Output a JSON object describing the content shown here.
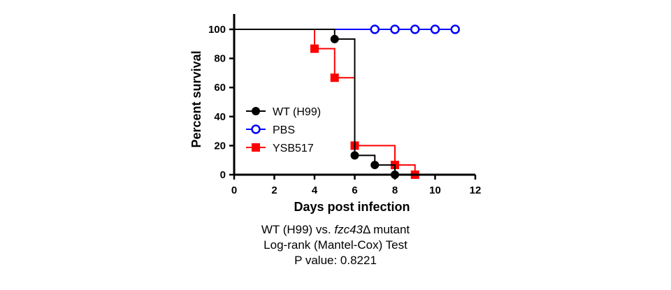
{
  "chart_data": {
    "type": "line",
    "step": true,
    "xlabel": "Days post infection",
    "ylabel": "Percent survival",
    "xlim": [
      0,
      12
    ],
    "ylim": [
      0,
      100
    ],
    "xticks": [
      0,
      2,
      4,
      6,
      8,
      10,
      12
    ],
    "yticks": [
      0,
      20,
      40,
      60,
      80,
      100
    ],
    "legend_position": "left",
    "grid": false,
    "series": [
      {
        "name": "WT (H99)",
        "color": "#000000",
        "marker": "circle-filled",
        "points": [
          [
            0,
            100
          ],
          [
            5,
            93.3
          ],
          [
            6,
            13.3
          ],
          [
            7,
            6.7
          ],
          [
            8,
            0
          ]
        ]
      },
      {
        "name": "PBS",
        "color": "#0000ff",
        "marker": "circle-open",
        "points": [
          [
            0,
            100
          ],
          [
            7,
            100
          ],
          [
            8,
            100
          ],
          [
            9,
            100
          ],
          [
            10,
            100
          ],
          [
            11,
            100
          ]
        ]
      },
      {
        "name": "YSB517",
        "color": "#ff0000",
        "marker": "square-filled",
        "points": [
          [
            0,
            100
          ],
          [
            4,
            86.7
          ],
          [
            5,
            66.7
          ],
          [
            6,
            20
          ],
          [
            8,
            6.7
          ],
          [
            9,
            0
          ]
        ]
      }
    ]
  },
  "caption": {
    "line1_prefix": "WT (H99) vs. ",
    "line1_italic": "fzc43",
    "line1_suffix": "Δ mutant",
    "line2": "Log-rank (Mantel-Cox) Test",
    "line3": "P value: 0.8221"
  }
}
